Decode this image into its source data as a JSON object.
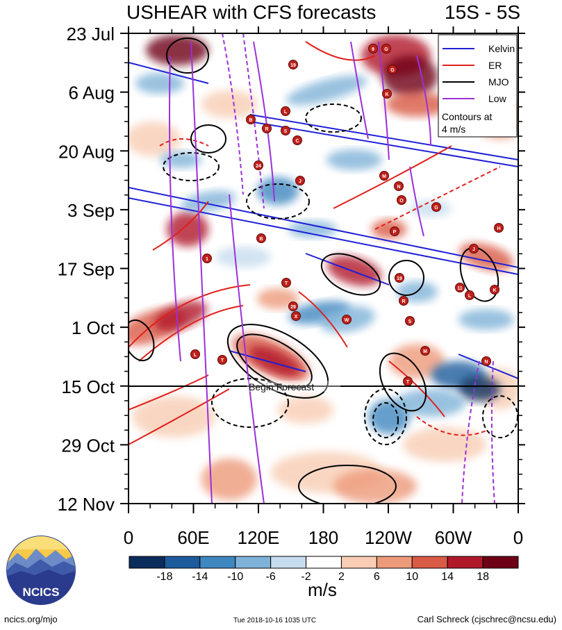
{
  "header": {
    "title": "USHEAR with CFS forecasts",
    "region": "15S - 5S"
  },
  "chart_data": {
    "type": "heatmap",
    "description_variable": "USHEAR",
    "x_ticks": [
      "0",
      "60E",
      "120E",
      "180",
      "120W",
      "60W",
      "0"
    ],
    "y_ticks": [
      "23 Jul",
      "6 Aug",
      "20 Aug",
      "3 Sep",
      "17 Sep",
      "1 Oct",
      "15 Oct",
      "29 Oct",
      "12 Nov"
    ],
    "forecast_start": "15 Oct",
    "forecast_label": "Begin Forecast",
    "legend": {
      "placement": "top-right",
      "entries": [
        {
          "label": "Kelvin",
          "color": "#1f1fd6"
        },
        {
          "label": "ER",
          "color": "#e0201a"
        },
        {
          "label": "MJO",
          "color": "#000000"
        },
        {
          "label": "Low",
          "color": "#9b30d9"
        }
      ],
      "note": "Contours at 4 m/s"
    },
    "colorbar": {
      "labels": [
        "-18",
        "-14",
        "-10",
        "-6",
        "-2",
        "2",
        "6",
        "10",
        "14",
        "18"
      ],
      "colors": [
        "#0b2d5c",
        "#1c5b9c",
        "#3f87c0",
        "#7fb2d8",
        "#c6dcee",
        "#ffffff",
        "#f8cdb4",
        "#ed9a7a",
        "#d95a45",
        "#b0192a",
        "#6e0016"
      ],
      "units": "m/s"
    },
    "storm_labels": [
      "9",
      "G",
      "19",
      "K",
      "G",
      "L",
      "B",
      "R",
      "S",
      "C",
      "24",
      "J",
      "M",
      "N",
      "O",
      "G",
      "H",
      "J",
      "P",
      "B",
      "1",
      "T",
      "29",
      "X",
      "W",
      "19",
      "R",
      "S",
      "11",
      "L",
      "K",
      "L",
      "T",
      "M",
      "N",
      "T"
    ]
  },
  "footer": {
    "left": "ncics.org/mjo",
    "middle": "Tue 2018-10-16 1035 UTC",
    "right": "Carl Schreck (cjschrec@ncsu.edu)"
  },
  "logo": {
    "text": "NCICS"
  }
}
